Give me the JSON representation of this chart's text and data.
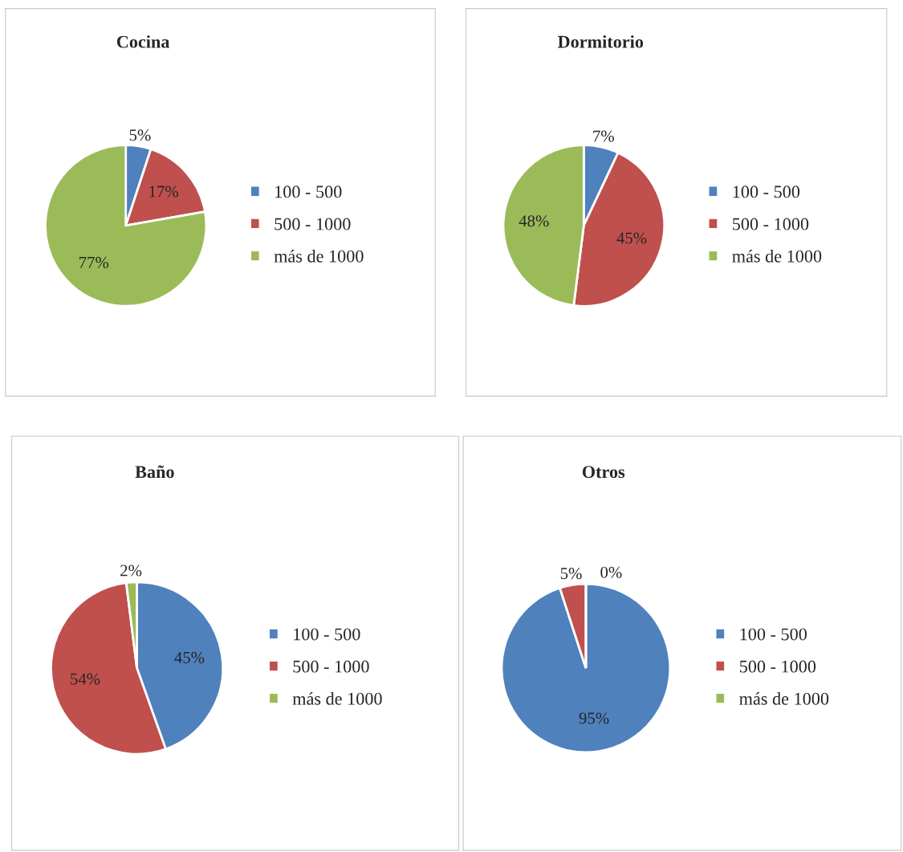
{
  "chart_data": [
    {
      "type": "pie",
      "title": "Cocina",
      "categories": [
        "100 - 500",
        "500 - 1000",
        "más de 1000"
      ],
      "values": [
        5,
        17,
        77
      ],
      "value_labels": [
        "5%",
        "17%",
        "77%"
      ],
      "colors": [
        "#4f81bd",
        "#c0504d",
        "#9bbb59"
      ],
      "legend": "right"
    },
    {
      "type": "pie",
      "title": "Dormitorio",
      "categories": [
        "100 - 500",
        "500 - 1000",
        "más de 1000"
      ],
      "values": [
        7,
        45,
        48
      ],
      "value_labels": [
        "7%",
        "45%",
        "48%"
      ],
      "colors": [
        "#4f81bd",
        "#c0504d",
        "#9bbb59"
      ],
      "legend": "right"
    },
    {
      "type": "pie",
      "title": "Baño",
      "categories": [
        "100 - 500",
        "500 - 1000",
        "más de 1000"
      ],
      "values": [
        45,
        54,
        2
      ],
      "value_labels": [
        "45%",
        "54%",
        "2%"
      ],
      "colors": [
        "#4f81bd",
        "#c0504d",
        "#9bbb59"
      ],
      "legend": "right"
    },
    {
      "type": "pie",
      "title": "Otros",
      "categories": [
        "100 - 500",
        "500 - 1000",
        "más de 1000"
      ],
      "values": [
        95,
        5,
        0
      ],
      "value_labels": [
        "95%",
        "5%",
        "0%"
      ],
      "colors": [
        "#4f81bd",
        "#c0504d",
        "#9bbb59"
      ],
      "legend": "right"
    }
  ]
}
